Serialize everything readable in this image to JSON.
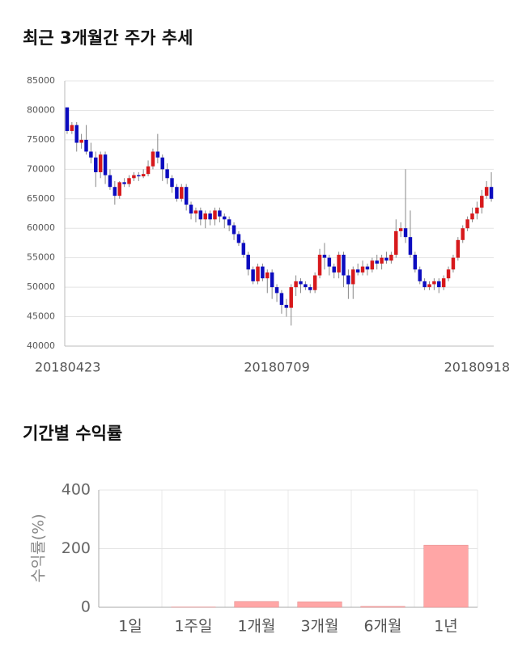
{
  "chart_data": [
    {
      "type": "candlestick",
      "title": "최근 3개월간 주가 추세",
      "categories": [
        "20180423",
        null,
        null,
        null,
        null,
        null,
        null,
        null,
        null,
        null,
        null,
        null,
        null,
        null,
        null,
        null,
        null,
        null,
        null,
        null,
        null,
        null,
        null,
        null,
        null,
        null,
        null,
        null,
        null,
        null,
        null,
        null,
        null,
        null,
        null,
        null,
        null,
        null,
        null,
        null,
        null,
        null,
        null,
        null,
        "20180709",
        null,
        null,
        null,
        null,
        null,
        null,
        null,
        null,
        null,
        null,
        null,
        null,
        null,
        null,
        null,
        null,
        null,
        null,
        null,
        null,
        null,
        null,
        null,
        null,
        null,
        null,
        null,
        null,
        null,
        null,
        null,
        null,
        null,
        null,
        null,
        null,
        null,
        null,
        null,
        null,
        null,
        null,
        null,
        null,
        "20180918"
      ],
      "open": [
        80500,
        76500,
        77500,
        74500,
        75000,
        73000,
        72000,
        69500,
        72500,
        69000,
        67000,
        65500,
        67800,
        67500,
        68500,
        69000,
        68800,
        69200,
        70500,
        73000,
        72000,
        70000,
        68500,
        67000,
        65000,
        67000,
        64000,
        62500,
        63000,
        61500,
        62500,
        61500,
        63000,
        62000,
        61500,
        60500,
        59000,
        57500,
        55500,
        53000,
        51000,
        53500,
        51500,
        52500,
        50000,
        49000,
        47000,
        46500,
        50000,
        51000,
        50500,
        50000,
        49500,
        52000,
        55500,
        55000,
        53500,
        52500,
        55500,
        52000,
        50500,
        53000,
        52500,
        53500,
        53000,
        54500,
        54000,
        55000,
        54500,
        55500,
        59500,
        60000,
        58500,
        55500,
        53000,
        51000,
        50000,
        50500,
        51000,
        50000,
        51500,
        53000,
        55000,
        58000,
        60000,
        61500,
        62500,
        63500,
        65500,
        67000
      ],
      "high": [
        80500,
        78000,
        78000,
        76000,
        77500,
        74500,
        73000,
        73000,
        73000,
        70000,
        68000,
        68000,
        68500,
        69000,
        69500,
        69500,
        70000,
        71500,
        73500,
        76000,
        72500,
        71000,
        69000,
        67500,
        67500,
        67500,
        64500,
        63500,
        63500,
        63000,
        63000,
        63500,
        63500,
        62500,
        62000,
        61000,
        59500,
        58000,
        56000,
        53500,
        54000,
        54000,
        53000,
        53000,
        50500,
        49500,
        48000,
        50500,
        52000,
        51500,
        51000,
        50500,
        52500,
        56500,
        57500,
        55500,
        54000,
        56000,
        56000,
        53000,
        53500,
        54000,
        54500,
        54000,
        55000,
        55500,
        55500,
        56000,
        56000,
        61500,
        61000,
        70000,
        63000,
        56000,
        53500,
        51500,
        51000,
        51500,
        51500,
        52000,
        53500,
        55500,
        58500,
        60500,
        62000,
        63500,
        64500,
        66500,
        68000,
        69500
      ],
      "low": [
        76000,
        76000,
        73000,
        73500,
        72500,
        71000,
        67000,
        68500,
        67500,
        66500,
        64000,
        65000,
        67000,
        67000,
        68000,
        68000,
        68500,
        68800,
        70000,
        71000,
        68000,
        67500,
        66000,
        64500,
        64500,
        63000,
        61500,
        61000,
        60500,
        60000,
        60500,
        60500,
        61000,
        60000,
        59500,
        58000,
        57000,
        55000,
        52000,
        50500,
        50500,
        51000,
        49000,
        48000,
        47500,
        45500,
        45000,
        43500,
        48500,
        49000,
        49500,
        49000,
        49000,
        51500,
        53000,
        52000,
        51500,
        51500,
        50000,
        48000,
        48000,
        52000,
        52000,
        52000,
        52500,
        53000,
        53000,
        54000,
        54000,
        55000,
        58500,
        57500,
        55000,
        52500,
        50500,
        49500,
        49500,
        49500,
        49000,
        49500,
        51000,
        52500,
        54500,
        57500,
        59500,
        61000,
        61500,
        62500,
        65000,
        64500
      ],
      "close": [
        76500,
        77500,
        74500,
        75000,
        73000,
        72000,
        69500,
        72500,
        69000,
        67000,
        65500,
        67800,
        67500,
        68500,
        69000,
        68800,
        69200,
        70500,
        73000,
        72000,
        70000,
        68500,
        67000,
        65000,
        67000,
        64000,
        62500,
        63000,
        61500,
        62500,
        61500,
        63000,
        62000,
        61500,
        60500,
        59000,
        57500,
        55500,
        53000,
        51000,
        53500,
        51500,
        52500,
        50000,
        49000,
        47000,
        46500,
        50000,
        51000,
        50500,
        50000,
        49500,
        52000,
        55500,
        55000,
        53500,
        52500,
        55500,
        52000,
        50500,
        53000,
        52500,
        53500,
        53000,
        54500,
        54000,
        55000,
        54500,
        55500,
        59500,
        60000,
        58500,
        55500,
        53000,
        51000,
        50000,
        50500,
        51000,
        50000,
        51500,
        53000,
        55000,
        58000,
        60000,
        61500,
        62500,
        63500,
        65500,
        67000,
        65000
      ],
      "up_color": "#d7191c",
      "down_color": "#0c0cbf",
      "ylim": [
        40000,
        85000
      ],
      "yticks": [
        40000,
        45000,
        50000,
        55000,
        60000,
        65000,
        70000,
        75000,
        80000,
        85000
      ],
      "grid": true
    },
    {
      "type": "bar",
      "title": "기간별 수익률",
      "y_label": "수익률(%)",
      "categories": [
        "1일",
        "1주일",
        "1개월",
        "3개월",
        "6개월",
        "1년"
      ],
      "values": [
        0,
        1,
        20,
        19,
        3,
        212
      ],
      "color": "#ffa6a6",
      "ylim": [
        0,
        400
      ],
      "yticks": [
        0,
        200,
        400
      ],
      "grid": true
    }
  ]
}
